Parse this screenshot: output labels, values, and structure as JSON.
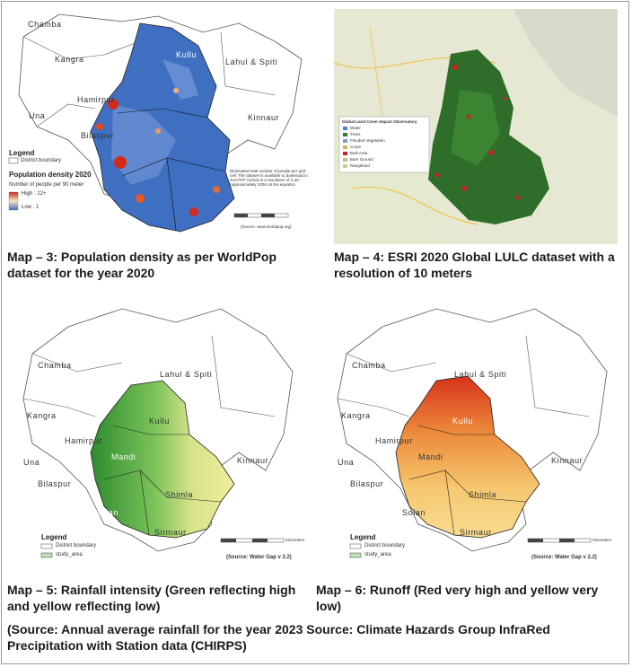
{
  "captions": {
    "map3": "Map – 3: Population density as per WorldPop dataset for the year 2020",
    "map4": "Map – 4: ESRI 2020 Global LULC dataset with a resolution of 10 meters",
    "map5": "Map – 5: Rainfall intensity (Green reflecting high and yellow reflecting low)",
    "map6": "Map – 6: Runoff (Red very high and yellow very low)",
    "source": "(Source: Annual average rainfall for the year 2023 Source: Climate Hazards Group InfraRed Precipitation with Station data (CHIRPS)"
  },
  "districts": {
    "chamba": "Chamba",
    "lahul": "Lahul & Spiti",
    "kangra": "Kangra",
    "kullu": "Kullu",
    "kinnaur": "Kinnaur",
    "una": "Una",
    "hamirpur": "Hamirpur",
    "mandi": "Mandi",
    "bilaspur": "Bilaspur",
    "shimla": "Shimla",
    "solan": "Solan",
    "sirmaur": "Sirmaur"
  },
  "map3": {
    "legend_title": "Legend",
    "boundary": "District boundary",
    "density_title": "Population density 2020",
    "density_sub": "Number of people per 90 meter",
    "high": "High : 22+",
    "low": "Low : 1",
    "note": "(Estimated total number of people per grid-cell. The dataset is available to download in GeoTIFF format at a resolution of 3 arc (approximately 100m at the equator).",
    "source": "(Source: www.worldpop.org)"
  },
  "map4": {
    "legend_title": "Global Land Cover Impact Observatory",
    "classes": [
      "Water",
      "Trees",
      "Flooded Vegetation",
      "Crops",
      "Built Area",
      "Bare Ground",
      "Rangeland"
    ],
    "class_colors": [
      "#4a7fd0",
      "#2f7a2f",
      "#7ea0c8",
      "#e0b050",
      "#cc2222",
      "#c8b8a0",
      "#b6d690"
    ]
  },
  "map5": {
    "legend_title": "Legend",
    "boundary": "District boundary",
    "study": "study_area",
    "scale_unit": "Kilometers",
    "source": "(Source: Water Gap v 2.2)"
  },
  "map6": {
    "legend_title": "Legend",
    "boundary": "District boundary",
    "study": "study_area",
    "scale_unit": "Kilometers",
    "source": "(Source: Water Gap v 2.2)"
  },
  "colors": {
    "pop_blue": "#3f6fc0",
    "pop_red": "#d42a1a",
    "lulc_green": "#2e6e2a",
    "rain_green": "#2e8b2e",
    "rain_yellow": "#f2ec9a",
    "run_red": "#d8321a",
    "run_yellow": "#f6d27a"
  }
}
